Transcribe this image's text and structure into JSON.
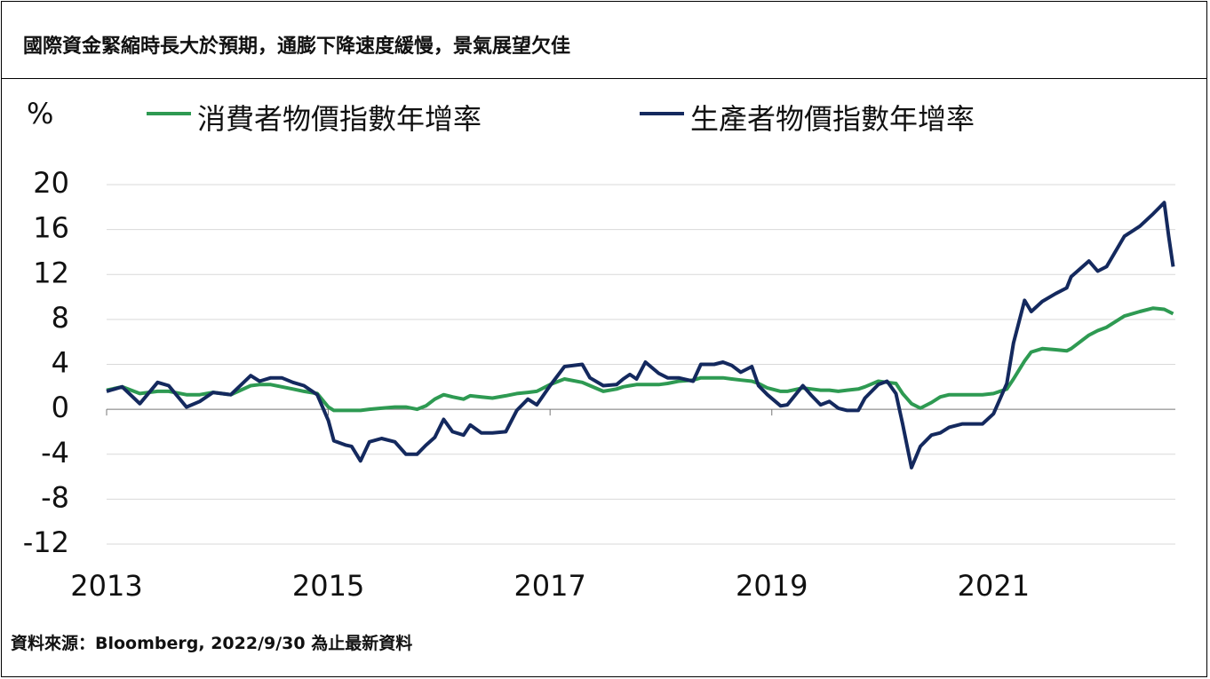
{
  "chart_data": {
    "type": "line",
    "title": "國際資金緊縮時長大於預期，通膨下降速度緩慢，景氣展望欠佳",
    "y_label": "%",
    "source": "資料來源：Bloomberg, 2022/9/30 為止最新資料",
    "x": [
      2013.0,
      2013.14,
      2013.3,
      2013.46,
      2013.56,
      2013.72,
      2013.84,
      2013.96,
      2014.12,
      2014.3,
      2014.38,
      2014.48,
      2014.58,
      2014.68,
      2014.78,
      2014.9,
      2015.0,
      2015.05,
      2015.16,
      2015.21,
      2015.29,
      2015.37,
      2015.48,
      2015.6,
      2015.7,
      2015.8,
      2015.88,
      2015.96,
      2016.04,
      2016.12,
      2016.22,
      2016.28,
      2016.38,
      2016.48,
      2016.6,
      2016.7,
      2016.8,
      2016.88,
      2017.0,
      2017.13,
      2017.29,
      2017.36,
      2017.48,
      2017.6,
      2017.66,
      2017.72,
      2017.78,
      2017.86,
      2017.98,
      2018.06,
      2018.16,
      2018.29,
      2018.36,
      2018.48,
      2018.56,
      2018.64,
      2018.72,
      2018.82,
      2018.88,
      2018.96,
      2019.08,
      2019.14,
      2019.28,
      2019.36,
      2019.44,
      2019.52,
      2019.6,
      2019.68,
      2019.78,
      2019.84,
      2019.96,
      2020.04,
      2020.12,
      2020.18,
      2020.26,
      2020.34,
      2020.44,
      2020.52,
      2020.6,
      2020.72,
      2020.84,
      2020.9,
      2021.0,
      2021.12,
      2021.18,
      2021.28,
      2021.34,
      2021.44,
      2021.56,
      2021.66,
      2021.7,
      2021.86,
      2021.94,
      2022.02,
      2022.18,
      2022.32,
      2022.44,
      2022.54,
      2022.58,
      2022.62
    ],
    "series": [
      {
        "name": "消費者物價指數年增率",
        "color": "#2e9a52",
        "values": [
          1.7,
          2.0,
          1.4,
          1.6,
          1.6,
          1.3,
          1.3,
          1.5,
          1.3,
          2.1,
          2.2,
          2.2,
          2.0,
          1.8,
          1.6,
          1.4,
          0.2,
          -0.1,
          -0.1,
          -0.1,
          -0.1,
          0,
          0.1,
          0.2,
          0.2,
          0,
          0.3,
          0.9,
          1.3,
          1.1,
          0.9,
          1.2,
          1.1,
          1.0,
          1.2,
          1.4,
          1.5,
          1.6,
          2.2,
          2.7,
          2.4,
          2.1,
          1.6,
          1.8,
          2.0,
          2.1,
          2.2,
          2.2,
          2.2,
          2.3,
          2.5,
          2.6,
          2.8,
          2.8,
          2.8,
          2.7,
          2.6,
          2.5,
          2.3,
          1.9,
          1.6,
          1.6,
          1.9,
          1.8,
          1.7,
          1.7,
          1.6,
          1.7,
          1.8,
          2.0,
          2.5,
          2.4,
          2.3,
          1.4,
          0.5,
          0.1,
          0.6,
          1.1,
          1.3,
          1.3,
          1.3,
          1.3,
          1.4,
          1.8,
          2.7,
          4.3,
          5.1,
          5.4,
          5.3,
          5.2,
          5.4,
          6.6,
          7.0,
          7.3,
          8.3,
          8.7,
          9.0,
          8.9,
          8.7,
          8.5
        ]
      },
      {
        "name": "生產者物價指數年增率",
        "color": "#14295e",
        "values": [
          1.6,
          2.0,
          0.5,
          2.4,
          2.1,
          0.2,
          0.7,
          1.5,
          1.3,
          3.0,
          2.5,
          2.8,
          2.8,
          2.4,
          2.1,
          1.3,
          -1.0,
          -2.8,
          -3.2,
          -3.3,
          -4.6,
          -2.9,
          -2.6,
          -2.9,
          -4.0,
          -4.0,
          -3.2,
          -2.5,
          -0.9,
          -2.0,
          -2.3,
          -1.4,
          -2.1,
          -2.1,
          -2.0,
          -0.1,
          0.9,
          0.4,
          2.1,
          3.8,
          4.0,
          2.8,
          2.1,
          2.2,
          2.7,
          3.1,
          2.7,
          4.2,
          3.2,
          2.8,
          2.8,
          2.5,
          4.0,
          4.0,
          4.2,
          3.9,
          3.3,
          3.8,
          2.1,
          1.3,
          0.3,
          0.4,
          2.1,
          1.2,
          0.4,
          0.7,
          0.1,
          -0.1,
          -0.1,
          1.0,
          2.2,
          2.5,
          1.4,
          -1.3,
          -5.2,
          -3.3,
          -2.3,
          -2.1,
          -1.6,
          -1.3,
          -1.3,
          -1.3,
          -0.4,
          2.3,
          5.9,
          9.7,
          8.7,
          9.6,
          10.3,
          10.8,
          11.8,
          13.2,
          12.3,
          12.7,
          15.4,
          16.3,
          17.4,
          18.4,
          15.4,
          12.7
        ]
      }
    ],
    "xlim": [
      2013,
      2022.64
    ],
    "xticks": [
      2013,
      2015,
      2017,
      2019,
      2021
    ],
    "ylim": [
      -12,
      20
    ],
    "yticks": [
      20,
      16,
      12,
      8,
      4,
      0,
      -4,
      -8,
      -12
    ],
    "grid": true
  }
}
